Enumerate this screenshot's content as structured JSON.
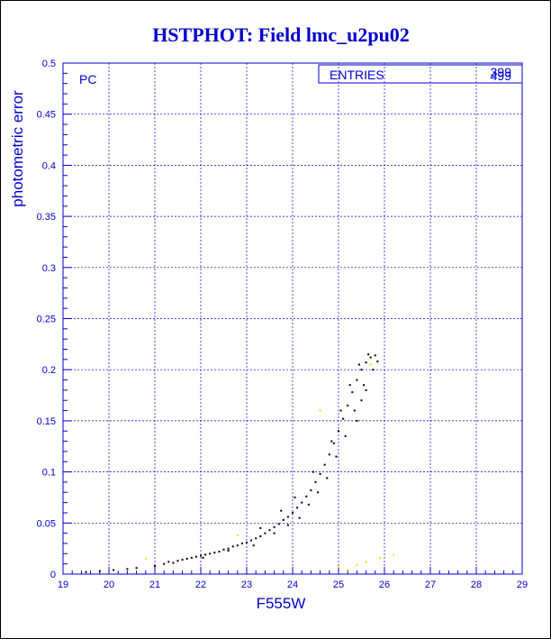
{
  "chart_data": {
    "type": "scatter",
    "title": "HSTPHOT: Field lmc_u2pu02",
    "xlabel": "F555W",
    "ylabel": "photometric error",
    "panel_label": "PC",
    "xlim": [
      19,
      29
    ],
    "ylim": [
      0,
      0.5
    ],
    "xticks": [
      "19",
      "20",
      "21",
      "22",
      "23",
      "24",
      "25",
      "26",
      "27",
      "28",
      "29"
    ],
    "yticks": [
      "0",
      "0.05",
      "0.1",
      "0.15",
      "0.2",
      "0.25",
      "0.3",
      "0.35",
      "0.4",
      "0.45",
      "0.5"
    ],
    "grid": true,
    "stats": {
      "label": "ENTRIES",
      "values": [
        "399",
        "499"
      ]
    },
    "colors": {
      "title": "#0000cc",
      "axis": "#0000cc",
      "grid": "#0000cc",
      "points": "#000000",
      "points_alt": "#e6e600"
    },
    "series": [
      {
        "color": "#000000",
        "points": [
          [
            19.5,
            0.002
          ],
          [
            19.8,
            0.003
          ],
          [
            20.1,
            0.004
          ],
          [
            20.4,
            0.005
          ],
          [
            20.6,
            0.006
          ],
          [
            21.0,
            0.008
          ],
          [
            21.2,
            0.01
          ],
          [
            21.4,
            0.011
          ],
          [
            21.5,
            0.013
          ],
          [
            21.6,
            0.014
          ],
          [
            21.7,
            0.015
          ],
          [
            21.8,
            0.016
          ],
          [
            21.9,
            0.017
          ],
          [
            22.0,
            0.018
          ],
          [
            22.1,
            0.019
          ],
          [
            22.2,
            0.02
          ],
          [
            22.3,
            0.021
          ],
          [
            22.4,
            0.022
          ],
          [
            22.5,
            0.024
          ],
          [
            22.6,
            0.025
          ],
          [
            22.7,
            0.027
          ],
          [
            22.8,
            0.028
          ],
          [
            22.9,
            0.03
          ],
          [
            23.0,
            0.031
          ],
          [
            23.1,
            0.033
          ],
          [
            23.2,
            0.035
          ],
          [
            23.3,
            0.037
          ],
          [
            23.4,
            0.04
          ],
          [
            23.5,
            0.043
          ],
          [
            23.6,
            0.046
          ],
          [
            23.7,
            0.049
          ],
          [
            23.8,
            0.053
          ],
          [
            23.9,
            0.056
          ],
          [
            24.0,
            0.06
          ],
          [
            24.1,
            0.065
          ],
          [
            24.2,
            0.07
          ],
          [
            24.3,
            0.076
          ],
          [
            24.4,
            0.082
          ],
          [
            24.5,
            0.09
          ],
          [
            24.6,
            0.098
          ],
          [
            24.7,
            0.107
          ],
          [
            24.8,
            0.117
          ],
          [
            24.9,
            0.128
          ],
          [
            25.0,
            0.14
          ],
          [
            25.1,
            0.152
          ],
          [
            25.2,
            0.165
          ],
          [
            25.3,
            0.178
          ],
          [
            25.4,
            0.19
          ],
          [
            25.5,
            0.2
          ],
          [
            25.6,
            0.207
          ],
          [
            25.7,
            0.212
          ],
          [
            25.8,
            0.214
          ],
          [
            21.3,
            0.012
          ],
          [
            22.05,
            0.016
          ],
          [
            22.6,
            0.023
          ],
          [
            23.15,
            0.028
          ],
          [
            23.6,
            0.04
          ],
          [
            23.9,
            0.048
          ],
          [
            24.15,
            0.055
          ],
          [
            24.35,
            0.068
          ],
          [
            24.55,
            0.08
          ],
          [
            24.75,
            0.094
          ],
          [
            24.95,
            0.115
          ],
          [
            25.15,
            0.135
          ],
          [
            25.35,
            0.16
          ],
          [
            25.55,
            0.185
          ],
          [
            25.75,
            0.2
          ],
          [
            25.85,
            0.208
          ],
          [
            23.3,
            0.045
          ],
          [
            23.75,
            0.062
          ],
          [
            24.05,
            0.075
          ],
          [
            24.45,
            0.1
          ],
          [
            24.85,
            0.13
          ],
          [
            25.05,
            0.16
          ],
          [
            25.25,
            0.185
          ],
          [
            25.45,
            0.205
          ],
          [
            25.65,
            0.215
          ],
          [
            25.5,
            0.17
          ],
          [
            25.6,
            0.18
          ],
          [
            25.4,
            0.15
          ]
        ]
      },
      {
        "color": "#e6e600",
        "points": [
          [
            20.8,
            0.015
          ],
          [
            22.8,
            0.038
          ],
          [
            24.6,
            0.16
          ],
          [
            25.0,
            0.007
          ],
          [
            25.2,
            0.004
          ],
          [
            25.4,
            0.009
          ],
          [
            25.6,
            0.012
          ],
          [
            25.9,
            0.016
          ],
          [
            26.2,
            0.019
          ],
          [
            25.7,
            0.205
          ]
        ]
      }
    ]
  }
}
